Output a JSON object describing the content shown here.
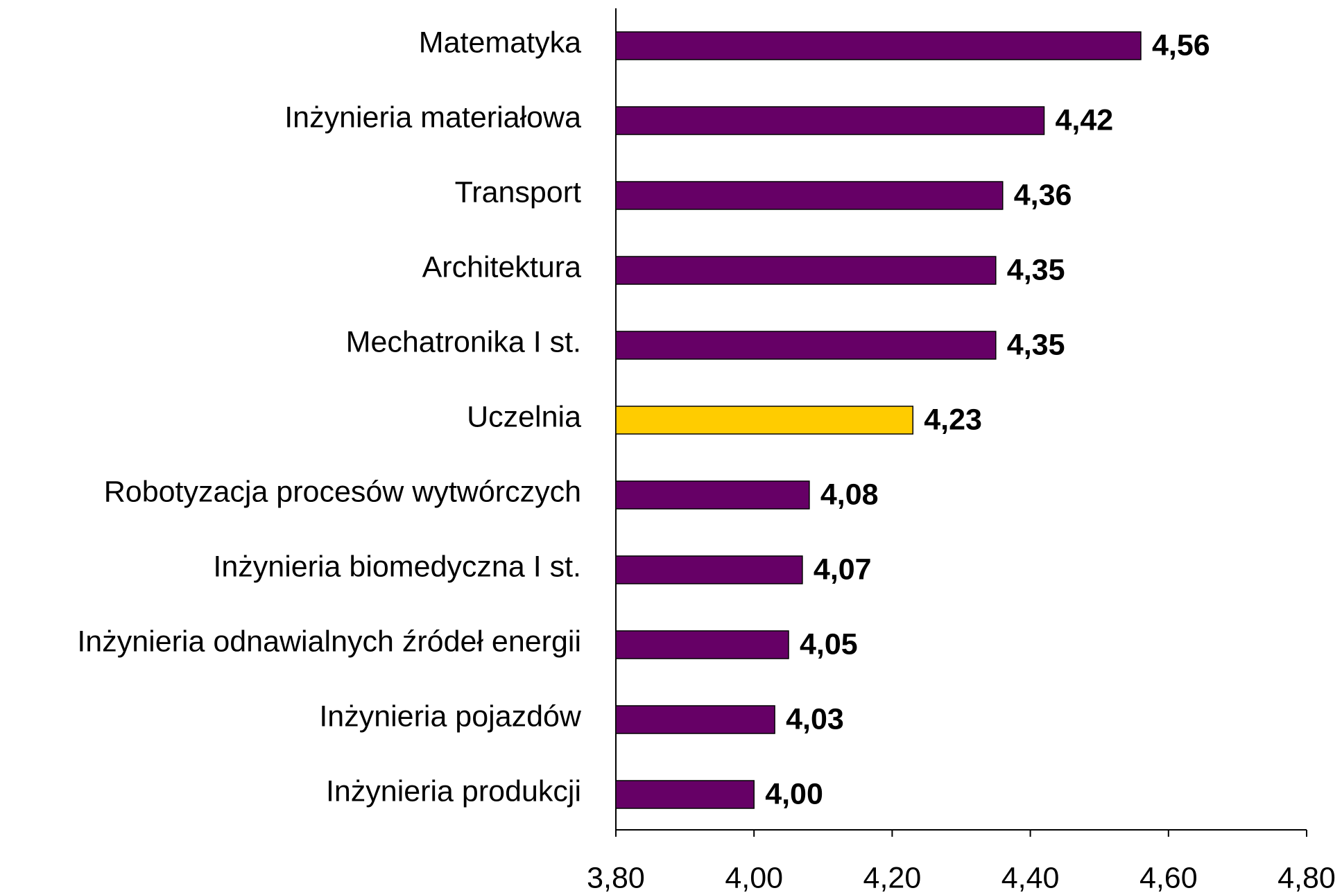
{
  "chart_data": {
    "type": "barh",
    "categories": [
      "Matematyka",
      "Inżynieria materiałowa",
      "Transport",
      "Architektura",
      "Mechatronika I st.",
      "Uczelnia",
      "Robotyzacja procesów wytwórczych",
      "Inżynieria biomedyczna I st.",
      "Inżynieria odnawialnych źródeł energii",
      "Inżynieria pojazdów",
      "Inżynieria produkcji"
    ],
    "values": [
      4.56,
      4.42,
      4.36,
      4.35,
      4.35,
      4.23,
      4.08,
      4.07,
      4.05,
      4.03,
      4.0
    ],
    "value_labels": [
      "4,56",
      "4,42",
      "4,36",
      "4,35",
      "4,35",
      "4,23",
      "4,08",
      "4,07",
      "4,05",
      "4,03",
      "4,00"
    ],
    "colors": [
      "#660066",
      "#660066",
      "#660066",
      "#660066",
      "#660066",
      "#ffcc00",
      "#660066",
      "#660066",
      "#660066",
      "#660066",
      "#660066"
    ],
    "xlim": [
      3.8,
      4.8
    ],
    "xticks": [
      {
        "value": 3.8,
        "label": "3,80"
      },
      {
        "value": 4.0,
        "label": "4,00"
      },
      {
        "value": 4.2,
        "label": "4,20"
      },
      {
        "value": 4.4,
        "label": "4,40"
      },
      {
        "value": 4.6,
        "label": "4,60"
      },
      {
        "value": 4.8,
        "label": "4,80"
      }
    ],
    "grid": false
  }
}
